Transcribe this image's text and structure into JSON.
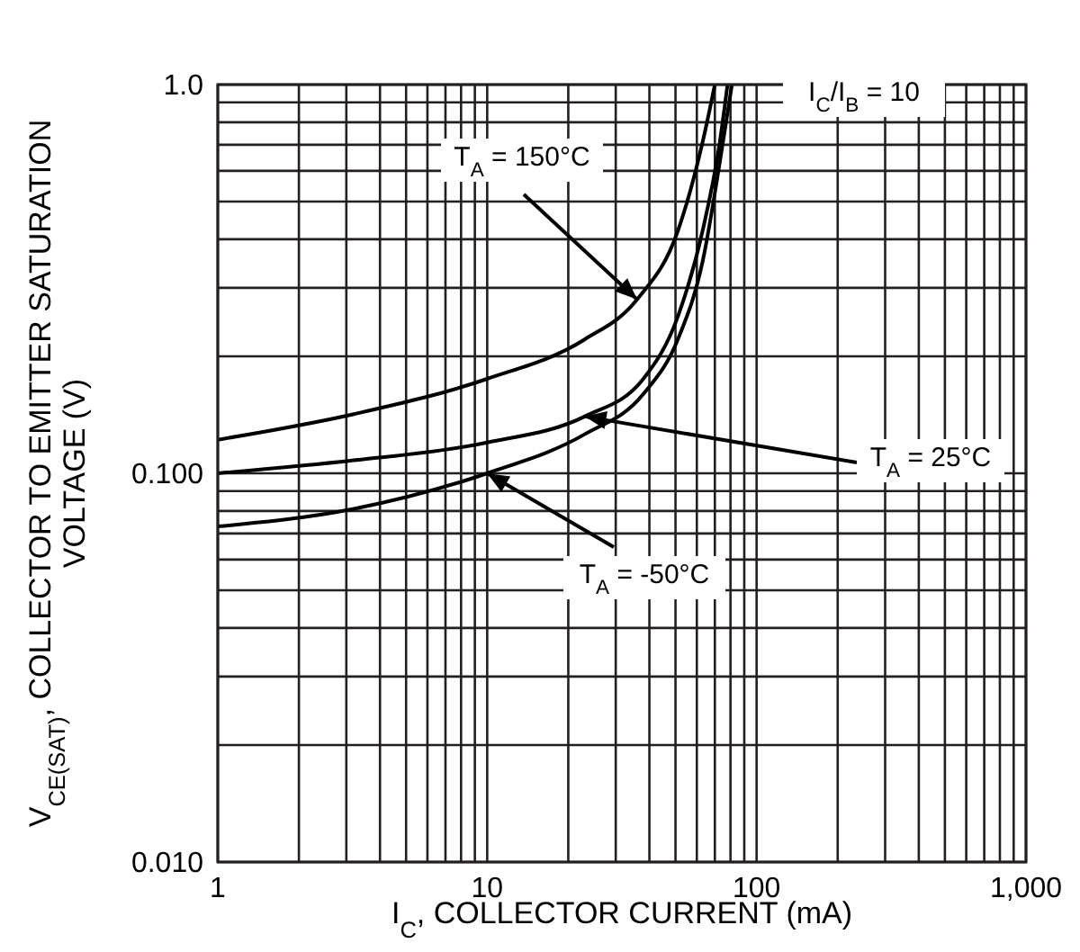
{
  "chart_data": {
    "type": "line",
    "xlabel": "I$_{C}$, COLLECTOR CURRENT (mA)",
    "ylabel": "V$_{CE(SAT)}$, COLLECTOR TO EMITTER SATURATION VOLTAGE (V)",
    "log": "xy",
    "grid": true,
    "marker": "none",
    "line_style": "solid",
    "legend": false,
    "xlim": [
      1,
      1000
    ],
    "ylim": [
      0.01,
      1
    ],
    "xticks": [
      1,
      {
        "value": 2,
        "label": null
      },
      {
        "value": 3,
        "label": null
      },
      {
        "value": 4,
        "label": null
      },
      {
        "value": 5,
        "label": null
      },
      {
        "value": 6,
        "label": null
      },
      {
        "value": 7,
        "label": null
      },
      {
        "value": 8,
        "label": null
      },
      {
        "value": 9,
        "label": null
      },
      10,
      {
        "value": 20,
        "label": null
      },
      {
        "value": 30,
        "label": null
      },
      {
        "value": 40,
        "label": null
      },
      {
        "value": 50,
        "label": null
      },
      {
        "value": 60,
        "label": null
      },
      {
        "value": 70,
        "label": null
      },
      {
        "value": 80,
        "label": null
      },
      {
        "value": 90,
        "label": null
      },
      100,
      {
        "value": 200,
        "label": null
      },
      {
        "value": 300,
        "label": null
      },
      {
        "value": 400,
        "label": null
      },
      {
        "value": 500,
        "label": null
      },
      {
        "value": 600,
        "label": null
      },
      {
        "value": 700,
        "label": null
      },
      {
        "value": 800,
        "label": null
      },
      {
        "value": 900,
        "label": null
      },
      {
        "value": 1000,
        "label": "1,000"
      }
    ],
    "yticks": [
      {
        "value": 0.01,
        "label": "0.010"
      },
      {
        "value": 0.02,
        "label": null
      },
      {
        "value": 0.03,
        "label": null
      },
      {
        "value": 0.04,
        "label": null
      },
      {
        "value": 0.05,
        "label": null
      },
      {
        "value": 0.06,
        "label": null
      },
      {
        "value": 0.07,
        "label": null
      },
      {
        "value": 0.08,
        "label": null
      },
      {
        "value": 0.09,
        "label": null
      },
      {
        "value": 0.1,
        "label": "0.100"
      },
      {
        "value": 0.2,
        "label": null
      },
      {
        "value": 0.3,
        "label": null
      },
      {
        "value": 0.4,
        "label": null
      },
      {
        "value": 0.5,
        "label": null
      },
      {
        "value": 0.6,
        "label": null
      },
      {
        "value": 0.7,
        "label": null
      },
      {
        "value": 0.8,
        "label": null
      },
      {
        "value": 0.9,
        "label": null
      },
      {
        "value": 1,
        "label": "1.0"
      }
    ],
    "series": [
      {
        "color": "#000000",
        "x": [
          1,
          3.2,
          10,
          23,
          36,
          51,
          63,
          70
        ],
        "values": [
          0.122,
          0.142,
          0.175,
          0.221,
          0.28,
          0.42,
          0.71,
          1.0
        ]
      },
      {
        "color": "#000000",
        "x": [
          1,
          3.2,
          10,
          23,
          38,
          51,
          63,
          73,
          78
        ],
        "values": [
          0.1,
          0.108,
          0.12,
          0.14,
          0.175,
          0.253,
          0.42,
          0.71,
          1.0
        ]
      },
      {
        "color": "#000000",
        "x": [
          1,
          3.2,
          10,
          23,
          38,
          51,
          63,
          75,
          81
        ],
        "values": [
          0.073,
          0.081,
          0.1,
          0.126,
          0.16,
          0.221,
          0.35,
          0.71,
          1.0
        ]
      }
    ],
    "annotations": [
      {
        "text": "T$_{A}$ = 150°C",
        "x": 36,
        "y": 0.28
      },
      {
        "text": "T$_{A}$ = 25°C",
        "x": 23,
        "y": 0.14
      },
      {
        "text": "T$_{A}$ = -50°C",
        "x": 10,
        "y": 0.1
      },
      "I$_{C}$/I$_{B}$ = 10"
    ]
  }
}
